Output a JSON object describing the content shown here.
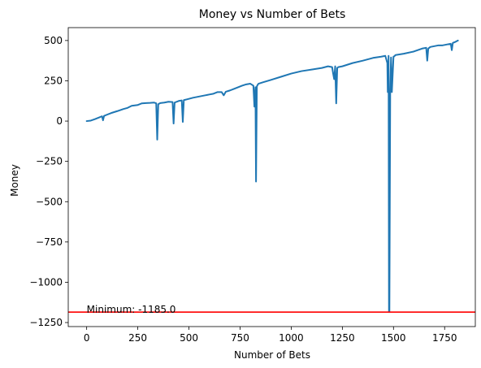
{
  "chart_data": {
    "type": "line",
    "title": "Money vs Number of Bets",
    "xlabel": "Number of Bets",
    "ylabel": "Money",
    "xlim": [
      -90,
      1900
    ],
    "ylim": [
      -1275,
      580
    ],
    "xticks": [
      0,
      250,
      500,
      750,
      1000,
      1250,
      1500,
      1750
    ],
    "yticks": [
      -1250,
      -1000,
      -750,
      -500,
      -250,
      0,
      250,
      500
    ],
    "xtick_labels": [
      "0",
      "250",
      "500",
      "750",
      "1000",
      "1250",
      "1500",
      "1750"
    ],
    "ytick_labels": [
      "−1250",
      "−1000",
      "−750",
      "−500",
      "−250",
      "0",
      "250",
      "500"
    ],
    "grid": false,
    "series": [
      {
        "color": "#1f77b4",
        "x": [
          0,
          20,
          40,
          60,
          75,
          80,
          85,
          100,
          120,
          150,
          180,
          200,
          220,
          250,
          270,
          290,
          310,
          330,
          340,
          345,
          350,
          360,
          380,
          400,
          420,
          425,
          430,
          450,
          465,
          470,
          475,
          490,
          520,
          560,
          580,
          600,
          620,
          640,
          660,
          670,
          680,
          700,
          720,
          740,
          760,
          780,
          800,
          815,
          820,
          825,
          828,
          832,
          836,
          840,
          860,
          900,
          950,
          1000,
          1050,
          1100,
          1150,
          1180,
          1200,
          1205,
          1210,
          1215,
          1220,
          1225,
          1230,
          1250,
          1300,
          1350,
          1400,
          1440,
          1460,
          1470,
          1472,
          1476,
          1478,
          1480,
          1484,
          1488,
          1492,
          1500,
          1504,
          1510,
          1550,
          1600,
          1640,
          1660,
          1665,
          1670,
          1680,
          1700,
          1720,
          1740,
          1760,
          1780,
          1785,
          1790,
          1800,
          1815
        ],
        "y": [
          0,
          3,
          12,
          22,
          30,
          5,
          32,
          40,
          50,
          62,
          75,
          82,
          95,
          100,
          110,
          112,
          113,
          115,
          110,
          -115,
          105,
          112,
          115,
          120,
          118,
          -15,
          115,
          125,
          128,
          -5,
          130,
          135,
          145,
          155,
          160,
          165,
          170,
          180,
          180,
          160,
          182,
          190,
          200,
          210,
          220,
          228,
          232,
          220,
          90,
          210,
          -375,
          215,
          225,
          232,
          240,
          255,
          275,
          295,
          310,
          320,
          330,
          340,
          335,
          295,
          260,
          340,
          110,
          330,
          335,
          340,
          360,
          375,
          392,
          400,
          405,
          360,
          180,
          405,
          -1185,
          -1185,
          180,
          395,
          180,
          400,
          402,
          410,
          418,
          432,
          450,
          455,
          375,
          450,
          460,
          465,
          470,
          470,
          475,
          480,
          440,
          485,
          490,
          500
        ]
      }
    ],
    "hlines": [
      {
        "y": -1185,
        "color": "#ff0000"
      }
    ],
    "annotations": [
      {
        "text": "Minimum: -1185.0",
        "x": 0,
        "y": -1170
      }
    ]
  }
}
